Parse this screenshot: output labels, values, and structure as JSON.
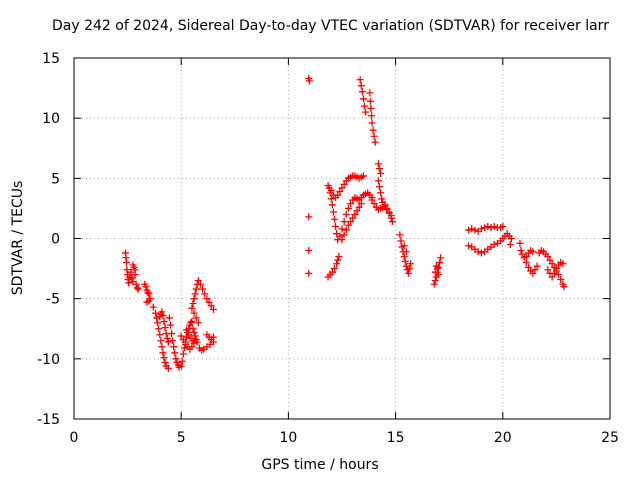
{
  "chart_data": {
    "type": "scatter",
    "title": "Day 242 of 2024, Sidereal Day-to-day VTEC variation (SDTVAR) for receiver larr",
    "xlabel": "GPS time / hours",
    "ylabel": "SDTVAR / TECUs",
    "xlim": [
      0,
      25
    ],
    "ylim": [
      -15,
      15
    ],
    "xticks": [
      "0",
      "5",
      "10",
      "15",
      "20",
      "25"
    ],
    "yticks": [
      "15",
      "10",
      "5",
      "0",
      "-5",
      "-10",
      "-15"
    ],
    "grid": true,
    "marker": "plus",
    "color": "#ff0000",
    "points": [
      [
        2.4,
        -1.2
      ],
      [
        2.42,
        -1.6
      ],
      [
        2.45,
        -2.0
      ],
      [
        2.47,
        -2.6
      ],
      [
        2.5,
        -3.0
      ],
      [
        2.52,
        -3.4
      ],
      [
        2.55,
        -3.7
      ],
      [
        2.6,
        -3.2
      ],
      [
        2.65,
        -2.8
      ],
      [
        2.7,
        -3.3
      ],
      [
        2.75,
        -3.6
      ],
      [
        2.8,
        -2.4
      ],
      [
        2.85,
        -3.0
      ],
      [
        2.9,
        -3.8
      ],
      [
        2.95,
        -4.1
      ],
      [
        3.0,
        -4.2
      ],
      [
        2.75,
        -2.2
      ],
      [
        2.85,
        -2.6
      ],
      [
        3.3,
        -3.8
      ],
      [
        3.35,
        -4.0
      ],
      [
        3.4,
        -4.3
      ],
      [
        3.45,
        -4.5
      ],
      [
        3.5,
        -4.6
      ],
      [
        3.4,
        -5.3
      ],
      [
        3.5,
        -5.2
      ],
      [
        3.55,
        -5.0
      ],
      [
        3.7,
        -5.7
      ],
      [
        3.8,
        -6.2
      ],
      [
        3.85,
        -6.6
      ],
      [
        3.9,
        -7.0
      ],
      [
        3.95,
        -7.5
      ],
      [
        4.0,
        -8.0
      ],
      [
        4.05,
        -8.5
      ],
      [
        4.1,
        -9.0
      ],
      [
        4.15,
        -9.5
      ],
      [
        4.2,
        -9.9
      ],
      [
        4.25,
        -10.3
      ],
      [
        4.3,
        -10.6
      ],
      [
        4.4,
        -10.8
      ],
      [
        4.0,
        -6.5
      ],
      [
        4.05,
        -6.3
      ],
      [
        4.1,
        -6.1
      ],
      [
        4.15,
        -6.4
      ],
      [
        4.2,
        -6.9
      ],
      [
        4.25,
        -7.4
      ],
      [
        4.3,
        -7.9
      ],
      [
        4.35,
        -8.3
      ],
      [
        4.4,
        -8.6
      ],
      [
        4.45,
        -6.6
      ],
      [
        4.5,
        -7.2
      ],
      [
        4.55,
        -7.9
      ],
      [
        4.6,
        -8.5
      ],
      [
        4.65,
        -9.0
      ],
      [
        4.7,
        -9.5
      ],
      [
        4.75,
        -10.0
      ],
      [
        4.8,
        -10.3
      ],
      [
        4.85,
        -10.5
      ],
      [
        4.9,
        -10.7
      ],
      [
        5.0,
        -10.6
      ],
      [
        5.05,
        -10.2
      ],
      [
        5.1,
        -9.6
      ],
      [
        5.15,
        -9.1
      ],
      [
        5.2,
        -8.6
      ],
      [
        5.25,
        -8.2
      ],
      [
        5.3,
        -7.8
      ],
      [
        5.35,
        -7.5
      ],
      [
        5.4,
        -7.2
      ],
      [
        5.45,
        -7.0
      ],
      [
        5.5,
        -6.9
      ],
      [
        5.0,
        -8.1
      ],
      [
        5.1,
        -8.4
      ],
      [
        5.2,
        -8.8
      ],
      [
        5.3,
        -9.0
      ],
      [
        5.4,
        -9.2
      ],
      [
        5.5,
        -9.0
      ],
      [
        5.6,
        -8.7
      ],
      [
        5.7,
        -8.4
      ],
      [
        5.55,
        -7.5
      ],
      [
        5.6,
        -7.8
      ],
      [
        5.65,
        -8.1
      ],
      [
        5.75,
        -8.6
      ],
      [
        5.85,
        -9.1
      ],
      [
        5.95,
        -9.3
      ],
      [
        6.05,
        -9.2
      ],
      [
        6.2,
        -9.0
      ],
      [
        6.35,
        -8.8
      ],
      [
        6.5,
        -8.6
      ],
      [
        6.2,
        -8.0
      ],
      [
        6.3,
        -8.2
      ],
      [
        6.4,
        -8.4
      ],
      [
        6.5,
        -8.2
      ],
      [
        5.25,
        -7.6
      ],
      [
        5.35,
        -8.0
      ],
      [
        5.45,
        -8.3
      ],
      [
        5.55,
        -8.5
      ],
      [
        5.5,
        -5.8
      ],
      [
        5.55,
        -5.4
      ],
      [
        5.6,
        -5.0
      ],
      [
        5.65,
        -4.6
      ],
      [
        5.7,
        -4.2
      ],
      [
        5.75,
        -3.8
      ],
      [
        5.8,
        -3.5
      ],
      [
        5.9,
        -3.8
      ],
      [
        6.0,
        -4.2
      ],
      [
        6.1,
        -4.6
      ],
      [
        6.2,
        -5.0
      ],
      [
        6.3,
        -5.3
      ],
      [
        6.4,
        -5.6
      ],
      [
        6.5,
        -5.9
      ],
      [
        5.6,
        -6.2
      ],
      [
        5.7,
        -6.6
      ],
      [
        5.8,
        -7.0
      ],
      [
        10.95,
        13.3
      ],
      [
        10.98,
        13.1
      ],
      [
        10.95,
        1.8
      ],
      [
        10.95,
        -1.0
      ],
      [
        10.95,
        -2.9
      ],
      [
        11.85,
        -3.2
      ],
      [
        11.95,
        -3.0
      ],
      [
        12.05,
        -2.8
      ],
      [
        12.15,
        -2.5
      ],
      [
        12.25,
        -2.1
      ],
      [
        12.3,
        -1.8
      ],
      [
        12.35,
        -1.5
      ],
      [
        11.85,
        4.4
      ],
      [
        11.9,
        4.2
      ],
      [
        11.95,
        3.8
      ],
      [
        12.0,
        3.3
      ],
      [
        12.05,
        2.8
      ],
      [
        12.1,
        2.2
      ],
      [
        12.15,
        1.6
      ],
      [
        12.2,
        1.0
      ],
      [
        12.25,
        0.4
      ],
      [
        12.3,
        -0.1
      ],
      [
        12.0,
        4.0
      ],
      [
        12.1,
        3.6
      ],
      [
        12.2,
        3.4
      ],
      [
        12.3,
        3.6
      ],
      [
        12.4,
        3.9
      ],
      [
        12.5,
        4.2
      ],
      [
        12.6,
        4.5
      ],
      [
        12.7,
        4.8
      ],
      [
        12.8,
        5.0
      ],
      [
        12.9,
        5.1
      ],
      [
        13.0,
        5.2
      ],
      [
        13.1,
        5.2
      ],
      [
        13.2,
        5.1
      ],
      [
        13.3,
        5.0
      ],
      [
        13.4,
        5.1
      ],
      [
        13.5,
        5.2
      ],
      [
        12.4,
        0.2
      ],
      [
        12.5,
        0.8
      ],
      [
        12.6,
        1.4
      ],
      [
        12.7,
        2.0
      ],
      [
        12.8,
        2.5
      ],
      [
        12.9,
        2.9
      ],
      [
        13.0,
        3.2
      ],
      [
        13.1,
        3.4
      ],
      [
        13.2,
        3.3
      ],
      [
        13.3,
        3.2
      ],
      [
        13.4,
        3.4
      ],
      [
        13.5,
        3.6
      ],
      [
        13.6,
        3.7
      ],
      [
        13.7,
        3.8
      ],
      [
        13.8,
        3.6
      ],
      [
        13.9,
        3.4
      ],
      [
        12.5,
        -0.1
      ],
      [
        12.6,
        0.3
      ],
      [
        12.7,
        0.7
      ],
      [
        12.8,
        1.1
      ],
      [
        12.9,
        1.4
      ],
      [
        13.0,
        1.7
      ],
      [
        13.1,
        2.0
      ],
      [
        13.2,
        2.3
      ],
      [
        13.3,
        2.6
      ],
      [
        13.4,
        2.9
      ],
      [
        13.35,
        13.2
      ],
      [
        13.4,
        12.7
      ],
      [
        13.45,
        12.2
      ],
      [
        13.5,
        11.6
      ],
      [
        13.55,
        11.0
      ],
      [
        13.6,
        10.5
      ],
      [
        13.8,
        12.1
      ],
      [
        13.82,
        11.4
      ],
      [
        13.85,
        10.8
      ],
      [
        13.88,
        10.2
      ],
      [
        13.9,
        9.6
      ],
      [
        13.95,
        9.0
      ],
      [
        14.0,
        8.5
      ],
      [
        14.05,
        8.0
      ],
      [
        13.9,
        3.2
      ],
      [
        14.0,
        2.9
      ],
      [
        14.1,
        2.6
      ],
      [
        14.2,
        2.4
      ],
      [
        14.3,
        2.5
      ],
      [
        14.4,
        2.6
      ],
      [
        14.5,
        2.8
      ],
      [
        14.6,
        2.5
      ],
      [
        14.7,
        2.1
      ],
      [
        14.8,
        1.7
      ],
      [
        14.2,
        6.2
      ],
      [
        14.25,
        5.8
      ],
      [
        14.3,
        5.4
      ],
      [
        14.2,
        4.8
      ],
      [
        14.25,
        4.3
      ],
      [
        14.3,
        3.8
      ],
      [
        14.35,
        3.3
      ],
      [
        14.4,
        3.0
      ],
      [
        14.5,
        2.7
      ],
      [
        14.6,
        2.4
      ],
      [
        14.7,
        2.2
      ],
      [
        14.8,
        1.9
      ],
      [
        14.85,
        1.4
      ],
      [
        15.2,
        0.3
      ],
      [
        15.25,
        -0.2
      ],
      [
        15.3,
        -0.7
      ],
      [
        15.35,
        -1.1
      ],
      [
        15.4,
        -1.5
      ],
      [
        15.45,
        -1.9
      ],
      [
        15.5,
        -2.3
      ],
      [
        15.55,
        -2.6
      ],
      [
        15.6,
        -2.9
      ],
      [
        15.65,
        -2.5
      ],
      [
        15.7,
        -2.1
      ],
      [
        15.4,
        -0.6
      ],
      [
        15.5,
        -1.1
      ],
      [
        16.8,
        -3.8
      ],
      [
        16.85,
        -3.5
      ],
      [
        16.9,
        -3.2
      ],
      [
        16.95,
        -2.8
      ],
      [
        17.0,
        -2.4
      ],
      [
        17.05,
        -2.0
      ],
      [
        17.1,
        -1.6
      ],
      [
        16.85,
        -2.8
      ],
      [
        16.9,
        -2.3
      ],
      [
        16.95,
        -2.5
      ],
      [
        17.0,
        -3.0
      ],
      [
        18.4,
        0.7
      ],
      [
        18.55,
        0.8
      ],
      [
        18.7,
        0.7
      ],
      [
        18.85,
        0.6
      ],
      [
        19.0,
        0.8
      ],
      [
        19.15,
        0.9
      ],
      [
        19.3,
        1.0
      ],
      [
        19.45,
        0.9
      ],
      [
        19.6,
        1.0
      ],
      [
        19.75,
        0.9
      ],
      [
        19.9,
        0.9
      ],
      [
        20.0,
        1.0
      ],
      [
        18.4,
        -0.6
      ],
      [
        18.55,
        -0.7
      ],
      [
        18.7,
        -0.9
      ],
      [
        18.85,
        -1.1
      ],
      [
        19.0,
        -1.2
      ],
      [
        19.15,
        -1.1
      ],
      [
        19.3,
        -0.9
      ],
      [
        19.45,
        -0.7
      ],
      [
        19.6,
        -0.5
      ],
      [
        19.75,
        -0.4
      ],
      [
        19.9,
        -0.2
      ],
      [
        20.0,
        0.0
      ],
      [
        20.1,
        0.2
      ],
      [
        20.2,
        0.4
      ],
      [
        20.3,
        0.2
      ],
      [
        20.4,
        0.0
      ],
      [
        20.35,
        -0.5
      ],
      [
        20.8,
        -0.4
      ],
      [
        20.85,
        -1.0
      ],
      [
        20.9,
        -1.3
      ],
      [
        21.0,
        -1.6
      ],
      [
        21.1,
        -2.0
      ],
      [
        21.2,
        -2.4
      ],
      [
        21.3,
        -2.7
      ],
      [
        21.4,
        -2.9
      ],
      [
        21.5,
        -2.6
      ],
      [
        21.6,
        -2.3
      ],
      [
        21.7,
        -1.2
      ],
      [
        21.8,
        -1.0
      ],
      [
        21.9,
        -1.1
      ],
      [
        22.0,
        -1.3
      ],
      [
        22.1,
        -1.5
      ],
      [
        22.2,
        -1.8
      ],
      [
        22.3,
        -2.1
      ],
      [
        22.4,
        -2.4
      ],
      [
        22.5,
        -2.7
      ],
      [
        22.6,
        -3.0
      ],
      [
        22.7,
        -3.4
      ],
      [
        22.8,
        -3.8
      ],
      [
        22.85,
        -4.0
      ],
      [
        22.1,
        -2.6
      ],
      [
        22.2,
        -2.9
      ],
      [
        22.3,
        -3.2
      ],
      [
        22.4,
        -2.9
      ],
      [
        22.5,
        -2.5
      ],
      [
        22.6,
        -2.2
      ],
      [
        22.7,
        -2.0
      ],
      [
        22.8,
        -2.1
      ],
      [
        21.1,
        -1.5
      ],
      [
        21.2,
        -1.2
      ],
      [
        21.3,
        -1.0
      ],
      [
        21.4,
        -1.1
      ]
    ]
  }
}
